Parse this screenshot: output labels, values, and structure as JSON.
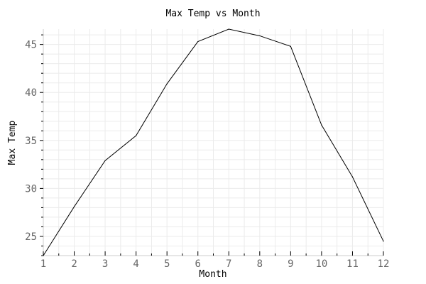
{
  "chart_data": {
    "type": "line",
    "title": "Max Temp vs Month",
    "xlabel": "Month",
    "ylabel": "Max Temp",
    "x": [
      1,
      2,
      3,
      4,
      5,
      6,
      7,
      8,
      9,
      10,
      11,
      12
    ],
    "series": [
      {
        "values": [
          23.0,
          28.1,
          32.9,
          35.5,
          40.9,
          45.3,
          46.6,
          45.9,
          44.8,
          36.6,
          31.2,
          24.5
        ]
      }
    ],
    "xlim": [
      1,
      12
    ],
    "ylim": [
      23,
      46.6
    ],
    "xticks": [
      "1",
      "2",
      "3",
      "4",
      "5",
      "6",
      "7",
      "8",
      "9",
      "10",
      "11",
      "12"
    ],
    "yticks": [
      "25",
      "30",
      "35",
      "40",
      "45"
    ],
    "grid": true,
    "line_color": "#000000",
    "grid_color": "#ebebeb",
    "tick_label_color": "#666666"
  }
}
